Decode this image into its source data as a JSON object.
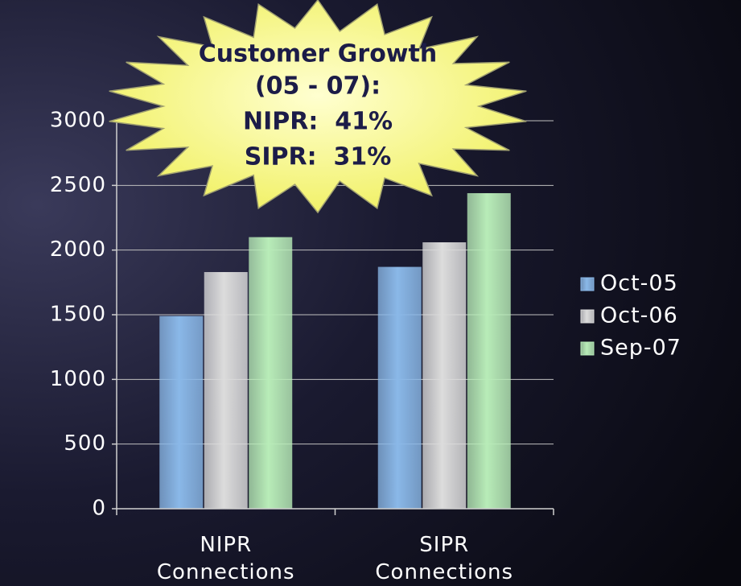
{
  "chart_data": {
    "type": "bar",
    "categories": [
      "NIPR Connections",
      "SIPR Connections"
    ],
    "series": [
      {
        "name": "Oct-05",
        "color": "#8ab8e8",
        "values": [
          1490,
          1870
        ]
      },
      {
        "name": "Oct-06",
        "color": "#dcdcdc",
        "values": [
          1830,
          2060
        ]
      },
      {
        "name": "Sep-07",
        "color": "#b8ecb8",
        "values": [
          2100,
          2440
        ]
      }
    ],
    "ylim": [
      0,
      3000
    ],
    "yticks": [
      0,
      500,
      1000,
      1500,
      2000,
      2500,
      3000
    ],
    "grid": true,
    "legend": "right",
    "annotation": [
      "Customer Growth",
      "(05 - 07):",
      "NIPR:  41%",
      "SIPR:  31%"
    ]
  }
}
